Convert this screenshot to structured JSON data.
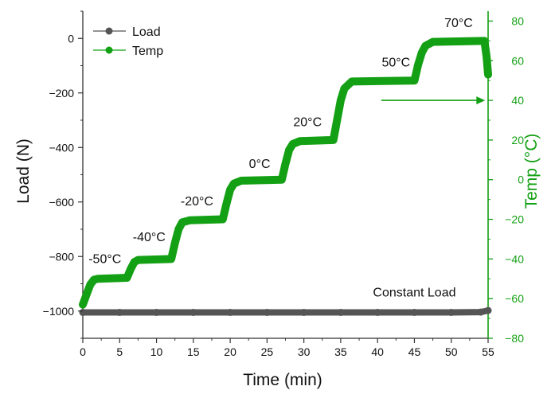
{
  "chart_data": {
    "type": "line",
    "title": "",
    "xlabel": "Time (min)",
    "ylabel": "Load (N)",
    "y2label": "Temp (°C)",
    "xlim": [
      0,
      55
    ],
    "ylim": [
      -1100,
      100
    ],
    "y2lim": [
      -80,
      85
    ],
    "x_ticks": [
      0,
      5,
      10,
      15,
      20,
      25,
      30,
      35,
      40,
      45,
      50,
      55
    ],
    "y_ticks": [
      0,
      -200,
      -400,
      -600,
      -800,
      -1000
    ],
    "y2_ticks": [
      80,
      60,
      40,
      20,
      0,
      -20,
      -40,
      -60,
      -80
    ],
    "x_tick_labels": [
      "0",
      "5",
      "10",
      "15",
      "20",
      "25",
      "30",
      "35",
      "40",
      "45",
      "50",
      "55"
    ],
    "y_tick_labels": [
      "0",
      "−200",
      "−400",
      "−600",
      "−800",
      "−1000"
    ],
    "y2_tick_labels": [
      "80",
      "60",
      "40",
      "20",
      "0",
      "−20",
      "−40",
      "−60",
      "−80"
    ],
    "legend": {
      "position": "top-left",
      "entries": [
        "Load",
        "Temp"
      ]
    },
    "series": [
      {
        "name": "Load",
        "axis": "left",
        "color": "#555555",
        "x": [
          0,
          5,
          10,
          15,
          20,
          25,
          30,
          35,
          40,
          45,
          50,
          54,
          55
        ],
        "y": [
          -1005,
          -1005,
          -1005,
          -1005,
          -1005,
          -1005,
          -1005,
          -1005,
          -1005,
          -1005,
          -1005,
          -1004,
          -998
        ]
      },
      {
        "name": "Temp",
        "axis": "right",
        "color": "#14a014",
        "x": [
          0,
          0.5,
          1.0,
          1.5,
          2.0,
          6.0,
          6.5,
          7.0,
          7.5,
          12.0,
          12.5,
          13.0,
          13.5,
          14.5,
          19.0,
          19.5,
          20.0,
          20.5,
          21.5,
          27.0,
          27.5,
          28.0,
          28.5,
          29.5,
          34.0,
          34.5,
          35.0,
          35.5,
          36.5,
          45.0,
          45.5,
          46.0,
          46.5,
          47.5,
          54.5,
          54.8,
          55.0
        ],
        "y": [
          -63,
          -58,
          -53,
          -50.5,
          -50,
          -49.5,
          -45,
          -41.5,
          -40.5,
          -40,
          -32,
          -25,
          -21.5,
          -20.5,
          -20,
          -12,
          -5,
          -2,
          -0.5,
          0,
          8,
          15,
          18,
          19.5,
          20,
          30,
          40,
          46,
          49.5,
          50,
          58,
          64,
          67.5,
          69.5,
          70,
          62,
          53
        ]
      }
    ],
    "annotations": [
      {
        "text": "-50°C",
        "x": 3.0,
        "y": -42
      },
      {
        "text": "-40°C",
        "x": 9.0,
        "y": -31
      },
      {
        "text": "-20°C",
        "x": 15.5,
        "y": -13
      },
      {
        "text": "0°C",
        "x": 24.0,
        "y": 6
      },
      {
        "text": "20°C",
        "x": 30.5,
        "y": 27
      },
      {
        "text": "50°C",
        "x": 42.5,
        "y": 57
      },
      {
        "text": "70°C",
        "x": 51.0,
        "y": 77
      },
      {
        "text": "Constant Load",
        "x": 45.0,
        "y": -946,
        "axis": "left"
      }
    ],
    "arrow": {
      "axis": "right",
      "x_from": 40.5,
      "x_to": 54.6,
      "y": 40
    }
  }
}
